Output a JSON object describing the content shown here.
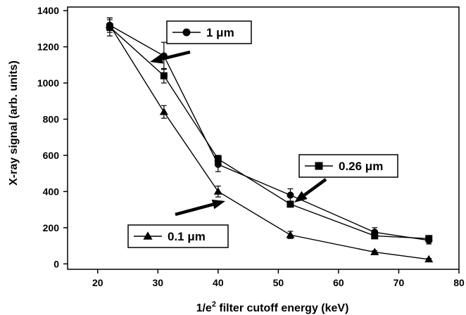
{
  "chart_data": {
    "type": "line",
    "xlabel_main": "1/e",
    "xlabel_sup": "2",
    "xlabel_rest": " filter cutoff energy (keV)",
    "ylabel": "X-ray signal (arb. units)",
    "xlim": [
      15,
      80
    ],
    "ylim": [
      -30,
      1420
    ],
    "xticks": [
      20,
      30,
      40,
      50,
      60,
      70,
      80
    ],
    "yticks": [
      0,
      200,
      400,
      600,
      800,
      1000,
      1200,
      1400
    ],
    "grid": false,
    "series": [
      {
        "name": "1 μm",
        "marker": "circle",
        "x": [
          22,
          31,
          40,
          52,
          66,
          75
        ],
        "y": [
          1320,
          1150,
          550,
          380,
          175,
          130
        ],
        "err": [
          40,
          75,
          40,
          35,
          25,
          20
        ]
      },
      {
        "name": "0.26 μm",
        "marker": "square",
        "x": [
          22,
          31,
          40,
          52,
          66,
          75
        ],
        "y": [
          1310,
          1040,
          580,
          330,
          155,
          140
        ],
        "err": [
          50,
          40,
          20,
          10,
          10,
          10
        ]
      },
      {
        "name": "0.1  μm",
        "marker": "triangle",
        "x": [
          22,
          31,
          40,
          52,
          66,
          75
        ],
        "y": [
          1320,
          840,
          400,
          160,
          65,
          25
        ],
        "err": [
          30,
          35,
          30,
          20,
          8,
          5
        ]
      }
    ]
  }
}
